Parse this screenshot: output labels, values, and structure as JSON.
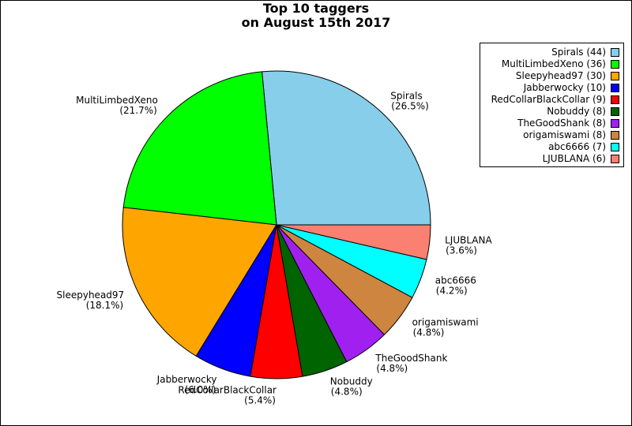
{
  "chart_data": {
    "type": "pie",
    "title": [
      "Top 10 taggers",
      "on August 15th 2017"
    ],
    "slices": [
      {
        "name": "Spirals",
        "value": 44,
        "pct_label": "(26.5%)",
        "color": "#87ceeb",
        "legend": "Spirals (44)"
      },
      {
        "name": "MultiLimbedXeno",
        "value": 36,
        "pct_label": "(21.7%)",
        "color": "#00ff00",
        "legend": "MultiLimbedXeno (36)"
      },
      {
        "name": "Sleepyhead97",
        "value": 30,
        "pct_label": "(18.1%)",
        "color": "#ffa500",
        "legend": "Sleepyhead97 (30)"
      },
      {
        "name": "Jabberwocky",
        "value": 10,
        "pct_label": "(6.0%)",
        "color": "#0000ff",
        "legend": "Jabberwocky (10)"
      },
      {
        "name": "RedCollarBlackCollar",
        "value": 9,
        "pct_label": "(5.4%)",
        "color": "#ff0000",
        "legend": "RedCollarBlackCollar (9)"
      },
      {
        "name": "Nobuddy",
        "value": 8,
        "pct_label": "(4.8%)",
        "color": "#006400",
        "legend": "Nobuddy (8)"
      },
      {
        "name": "TheGoodShank",
        "value": 8,
        "pct_label": "(4.8%)",
        "color": "#a020f0",
        "legend": "TheGoodShank (8)"
      },
      {
        "name": "origamiswami",
        "value": 8,
        "pct_label": "(4.8%)",
        "color": "#cd853f",
        "legend": "origamiswami (8)"
      },
      {
        "name": "abc6666",
        "value": 7,
        "pct_label": "(4.2%)",
        "color": "#00ffff",
        "legend": "abc6666 (7)"
      },
      {
        "name": "LJUBLANA",
        "value": 6,
        "pct_label": "(3.6%)",
        "color": "#fa8072",
        "legend": "LJUBLANA (6)"
      }
    ],
    "legend_position": "top-right",
    "start": "3 o'clock",
    "direction": "counterclockwise"
  }
}
